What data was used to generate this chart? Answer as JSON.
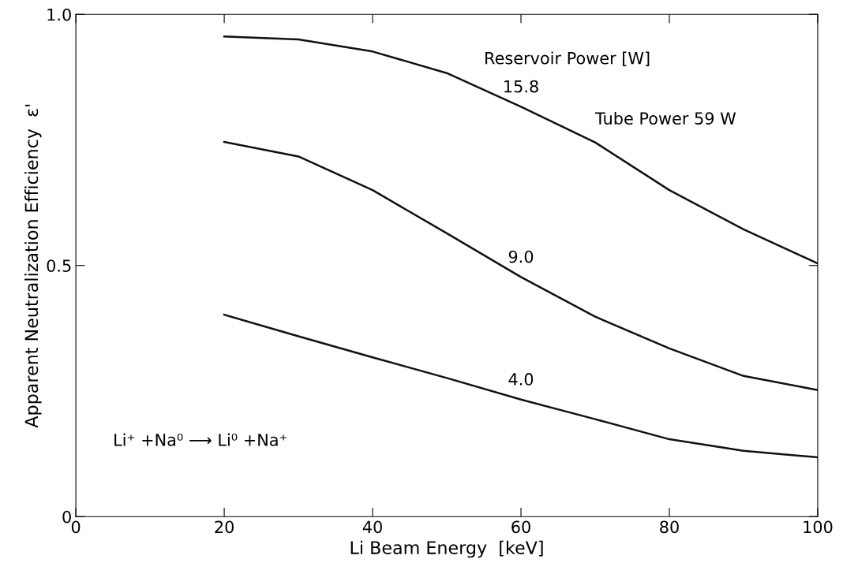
{
  "chart_data": {
    "type": "line",
    "xlabel": "Li Beam Energy  [keV]",
    "ylabel": "Apparent Neutralization Efficiency  ε'",
    "x": [
      20,
      30,
      40,
      50,
      60,
      70,
      80,
      90,
      100
    ],
    "series": [
      {
        "name": "15.8",
        "color": "#111111",
        "values": [
          0.956,
          0.95,
          0.926,
          0.883,
          0.816,
          0.745,
          0.65,
          0.572,
          0.504
        ]
      },
      {
        "name": "9.0",
        "color": "#111111",
        "values": [
          0.746,
          0.717,
          0.65,
          0.564,
          0.477,
          0.398,
          0.335,
          0.28,
          0.252
        ]
      },
      {
        "name": "4.0",
        "color": "#111111",
        "values": [
          0.402,
          0.359,
          0.317,
          0.276,
          0.233,
          0.194,
          0.154,
          0.131,
          0.118
        ]
      }
    ],
    "annotations": [
      "Reservoir Power [W]",
      "Tube Power 59 W",
      "Li⁺ +Na⁰ ⟶ Li⁰ +Na⁺"
    ],
    "xlim": [
      0,
      100
    ],
    "ylim": [
      0,
      1
    ],
    "xticks": [
      0,
      20,
      40,
      60,
      80,
      100
    ],
    "yticks": [
      0,
      0.5,
      {
        "value": 1,
        "label": "1.0"
      }
    ],
    "grid": false,
    "legend": false,
    "marker": "none",
    "line_style": "solid"
  }
}
